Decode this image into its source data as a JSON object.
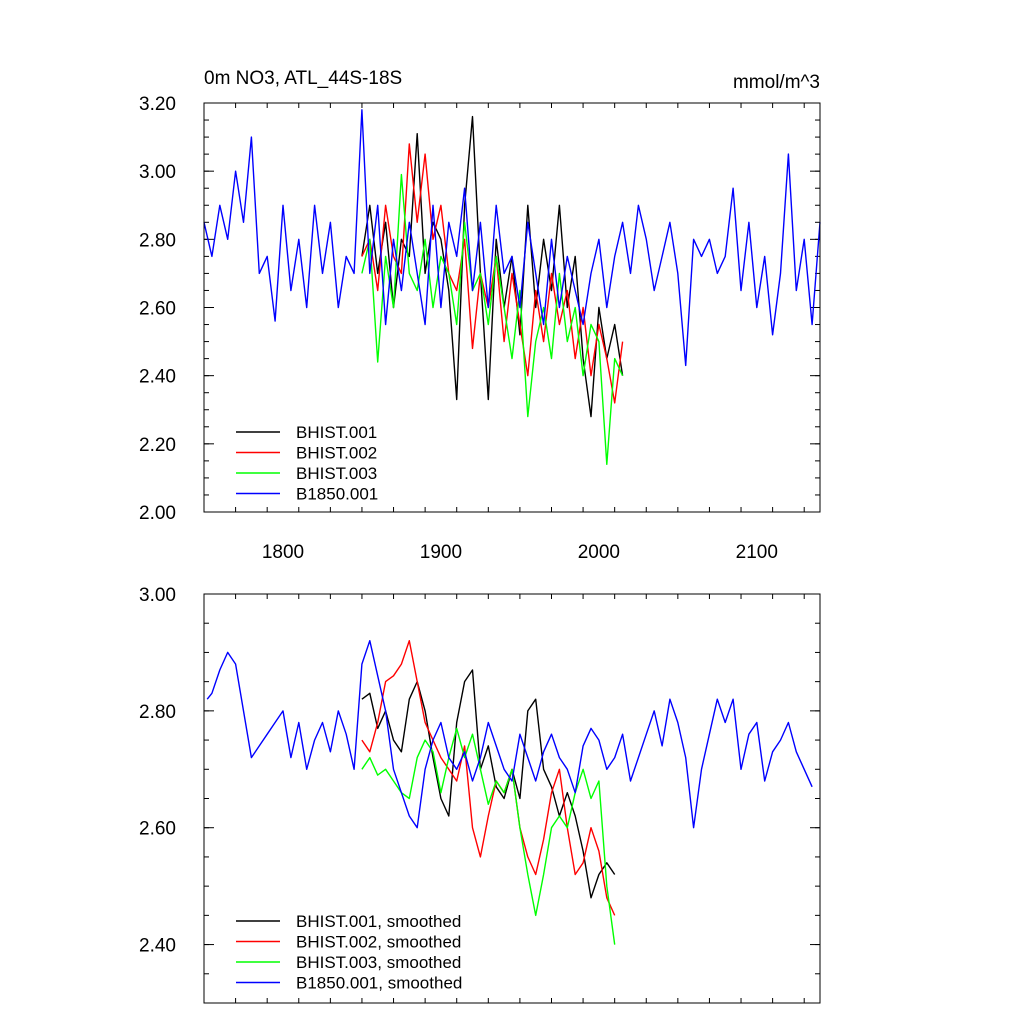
{
  "chart_data": [
    {
      "type": "line",
      "title": "0m NO3, ATL_44S-18S",
      "units": "mmol/m^3",
      "xlim": [
        1750,
        2140
      ],
      "ylim": [
        2.0,
        3.2
      ],
      "yticks": [
        "2.00",
        "2.20",
        "2.40",
        "2.60",
        "2.80",
        "3.00",
        "3.20"
      ],
      "xticks": [
        "1800",
        "1900",
        "2000",
        "2100"
      ],
      "legend_position": "bottom-left",
      "series": [
        {
          "name": "BHIST.001",
          "color": "#000000",
          "x": [
            1850,
            1855,
            1860,
            1865,
            1870,
            1875,
            1880,
            1885,
            1890,
            1895,
            1900,
            1905,
            1910,
            1915,
            1920,
            1925,
            1930,
            1935,
            1940,
            1945,
            1950,
            1955,
            1960,
            1965,
            1970,
            1975,
            1980,
            1985,
            1990,
            1995,
            2000,
            2005,
            2010,
            2015
          ],
          "values": [
            2.75,
            2.9,
            2.7,
            2.85,
            2.6,
            2.8,
            2.75,
            3.11,
            2.7,
            2.85,
            2.8,
            2.65,
            2.33,
            2.9,
            3.16,
            2.7,
            2.33,
            2.8,
            2.6,
            2.75,
            2.52,
            2.9,
            2.6,
            2.8,
            2.65,
            2.9,
            2.6,
            2.75,
            2.45,
            2.28,
            2.6,
            2.45,
            2.55,
            2.4
          ]
        },
        {
          "name": "BHIST.002",
          "color": "#ff0000",
          "x": [
            1850,
            1855,
            1860,
            1865,
            1870,
            1875,
            1880,
            1885,
            1890,
            1895,
            1900,
            1905,
            1910,
            1915,
            1920,
            1925,
            1930,
            1935,
            1940,
            1945,
            1950,
            1955,
            1960,
            1965,
            1970,
            1975,
            1980,
            1985,
            1990,
            1995,
            2000,
            2005,
            2010,
            2015
          ],
          "values": [
            2.75,
            2.8,
            2.65,
            2.9,
            2.75,
            2.7,
            3.08,
            2.85,
            3.05,
            2.8,
            2.9,
            2.7,
            2.65,
            2.8,
            2.48,
            2.7,
            2.6,
            2.75,
            2.5,
            2.7,
            2.55,
            2.4,
            2.65,
            2.5,
            2.7,
            2.55,
            2.65,
            2.45,
            2.6,
            2.4,
            2.55,
            2.45,
            2.32,
            2.5
          ]
        },
        {
          "name": "BHIST.003",
          "color": "#00ff00",
          "x": [
            1850,
            1855,
            1860,
            1865,
            1870,
            1875,
            1880,
            1885,
            1890,
            1895,
            1900,
            1905,
            1910,
            1915,
            1920,
            1925,
            1930,
            1935,
            1940,
            1945,
            1950,
            1955,
            1960,
            1965,
            1970,
            1975,
            1980,
            1985,
            1990,
            1995,
            2000,
            2005,
            2010,
            2015
          ],
          "values": [
            2.7,
            2.8,
            2.44,
            2.75,
            2.6,
            2.99,
            2.7,
            2.65,
            2.8,
            2.6,
            2.75,
            2.7,
            2.55,
            2.85,
            2.65,
            2.7,
            2.55,
            2.75,
            2.6,
            2.45,
            2.65,
            2.28,
            2.5,
            2.6,
            2.45,
            2.7,
            2.5,
            2.6,
            2.4,
            2.55,
            2.5,
            2.14,
            2.45,
            2.4
          ]
        },
        {
          "name": "B1850.001",
          "color": "#0000ff",
          "x": [
            1750,
            1755,
            1760,
            1765,
            1770,
            1775,
            1780,
            1785,
            1790,
            1795,
            1800,
            1805,
            1810,
            1815,
            1820,
            1825,
            1830,
            1835,
            1840,
            1845,
            1850,
            1855,
            1860,
            1865,
            1870,
            1875,
            1880,
            1885,
            1890,
            1895,
            1900,
            1905,
            1910,
            1915,
            1920,
            1925,
            1930,
            1935,
            1940,
            1945,
            1950,
            1955,
            1960,
            1965,
            1970,
            1975,
            1980,
            1985,
            1990,
            1995,
            2000,
            2005,
            2010,
            2015,
            2020,
            2025,
            2030,
            2035,
            2040,
            2045,
            2050,
            2055,
            2060,
            2065,
            2070,
            2075,
            2080,
            2085,
            2090,
            2095,
            2100,
            2105,
            2110,
            2115,
            2120,
            2125,
            2130,
            2135,
            2140
          ],
          "values": [
            2.85,
            2.75,
            2.9,
            2.8,
            3.0,
            2.85,
            3.1,
            2.7,
            2.75,
            2.56,
            2.9,
            2.65,
            2.8,
            2.6,
            2.9,
            2.7,
            2.85,
            2.6,
            2.75,
            2.7,
            3.18,
            2.7,
            2.9,
            2.55,
            2.8,
            2.65,
            2.85,
            2.7,
            2.55,
            2.9,
            2.6,
            2.85,
            2.75,
            2.95,
            2.65,
            2.85,
            2.6,
            2.9,
            2.7,
            2.75,
            2.6,
            2.85,
            2.7,
            2.55,
            2.8,
            2.6,
            2.75,
            2.65,
            2.55,
            2.7,
            2.8,
            2.6,
            2.75,
            2.85,
            2.7,
            2.9,
            2.8,
            2.65,
            2.75,
            2.85,
            2.7,
            2.43,
            2.8,
            2.75,
            2.8,
            2.7,
            2.75,
            2.95,
            2.65,
            2.85,
            2.6,
            2.75,
            2.52,
            2.7,
            3.05,
            2.65,
            2.8,
            2.55,
            2.85
          ]
        }
      ]
    },
    {
      "type": "line",
      "xlim": [
        1750,
        2140
      ],
      "ylim": [
        2.3,
        3.0
      ],
      "yticks": [
        "2.40",
        "2.60",
        "2.80",
        "3.00"
      ],
      "legend_position": "bottom-left",
      "series": [
        {
          "name": "BHIST.001, smoothed",
          "color": "#000000",
          "x": [
            1850,
            1855,
            1860,
            1865,
            1870,
            1875,
            1880,
            1885,
            1890,
            1895,
            1900,
            1905,
            1910,
            1915,
            1920,
            1925,
            1930,
            1935,
            1940,
            1945,
            1950,
            1955,
            1960,
            1965,
            1970,
            1975,
            1980,
            1985,
            1990,
            1995,
            2000,
            2005,
            2010
          ],
          "values": [
            2.82,
            2.83,
            2.77,
            2.8,
            2.75,
            2.73,
            2.82,
            2.85,
            2.8,
            2.72,
            2.65,
            2.62,
            2.78,
            2.85,
            2.87,
            2.7,
            2.74,
            2.67,
            2.65,
            2.7,
            2.65,
            2.8,
            2.82,
            2.7,
            2.67,
            2.62,
            2.66,
            2.62,
            2.56,
            2.48,
            2.52,
            2.54,
            2.52
          ]
        },
        {
          "name": "BHIST.002, smoothed",
          "color": "#ff0000",
          "x": [
            1850,
            1855,
            1860,
            1865,
            1870,
            1875,
            1880,
            1885,
            1890,
            1895,
            1900,
            1905,
            1910,
            1915,
            1920,
            1925,
            1930,
            1935,
            1940,
            1945,
            1950,
            1955,
            1960,
            1965,
            1970,
            1975,
            1980,
            1985,
            1990,
            1995,
            2000,
            2005,
            2010
          ],
          "values": [
            2.75,
            2.73,
            2.78,
            2.85,
            2.86,
            2.88,
            2.92,
            2.85,
            2.78,
            2.75,
            2.72,
            2.7,
            2.68,
            2.74,
            2.6,
            2.55,
            2.62,
            2.68,
            2.66,
            2.7,
            2.6,
            2.55,
            2.52,
            2.58,
            2.66,
            2.7,
            2.6,
            2.52,
            2.54,
            2.6,
            2.56,
            2.48,
            2.45
          ]
        },
        {
          "name": "BHIST.003, smoothed",
          "color": "#00ff00",
          "x": [
            1850,
            1855,
            1860,
            1865,
            1870,
            1875,
            1880,
            1885,
            1890,
            1895,
            1900,
            1905,
            1910,
            1915,
            1920,
            1925,
            1930,
            1935,
            1940,
            1945,
            1950,
            1955,
            1960,
            1965,
            1970,
            1975,
            1980,
            1985,
            1990,
            1995,
            2000,
            2005,
            2010
          ],
          "values": [
            2.7,
            2.72,
            2.69,
            2.7,
            2.68,
            2.66,
            2.65,
            2.72,
            2.75,
            2.73,
            2.66,
            2.72,
            2.77,
            2.72,
            2.76,
            2.7,
            2.64,
            2.68,
            2.66,
            2.7,
            2.6,
            2.52,
            2.45,
            2.52,
            2.6,
            2.62,
            2.6,
            2.66,
            2.7,
            2.65,
            2.68,
            2.5,
            2.4
          ]
        },
        {
          "name": "B1850.001, smoothed",
          "color": "#0000ff",
          "x": [
            1752,
            1755,
            1760,
            1765,
            1770,
            1775,
            1780,
            1785,
            1790,
            1795,
            1800,
            1805,
            1810,
            1815,
            1820,
            1825,
            1830,
            1835,
            1840,
            1845,
            1850,
            1855,
            1860,
            1865,
            1870,
            1875,
            1880,
            1885,
            1890,
            1895,
            1900,
            1905,
            1910,
            1915,
            1920,
            1925,
            1930,
            1935,
            1940,
            1945,
            1950,
            1955,
            1960,
            1965,
            1970,
            1975,
            1980,
            1985,
            1990,
            1995,
            2000,
            2005,
            2010,
            2015,
            2020,
            2025,
            2030,
            2035,
            2040,
            2045,
            2050,
            2055,
            2060,
            2065,
            2070,
            2075,
            2080,
            2085,
            2090,
            2095,
            2100,
            2105,
            2110,
            2115,
            2120,
            2125,
            2130,
            2135
          ],
          "values": [
            2.82,
            2.83,
            2.87,
            2.9,
            2.88,
            2.8,
            2.72,
            2.74,
            2.76,
            2.78,
            2.8,
            2.72,
            2.78,
            2.7,
            2.75,
            2.78,
            2.73,
            2.8,
            2.76,
            2.7,
            2.88,
            2.92,
            2.86,
            2.8,
            2.7,
            2.66,
            2.62,
            2.6,
            2.7,
            2.75,
            2.78,
            2.72,
            2.7,
            2.73,
            2.68,
            2.72,
            2.78,
            2.74,
            2.7,
            2.68,
            2.76,
            2.72,
            2.68,
            2.73,
            2.76,
            2.72,
            2.7,
            2.66,
            2.74,
            2.77,
            2.75,
            2.7,
            2.72,
            2.76,
            2.68,
            2.72,
            2.76,
            2.8,
            2.74,
            2.82,
            2.78,
            2.72,
            2.6,
            2.7,
            2.76,
            2.82,
            2.78,
            2.82,
            2.7,
            2.76,
            2.78,
            2.68,
            2.73,
            2.75,
            2.78,
            2.73,
            2.7,
            2.67
          ]
        }
      ]
    }
  ]
}
